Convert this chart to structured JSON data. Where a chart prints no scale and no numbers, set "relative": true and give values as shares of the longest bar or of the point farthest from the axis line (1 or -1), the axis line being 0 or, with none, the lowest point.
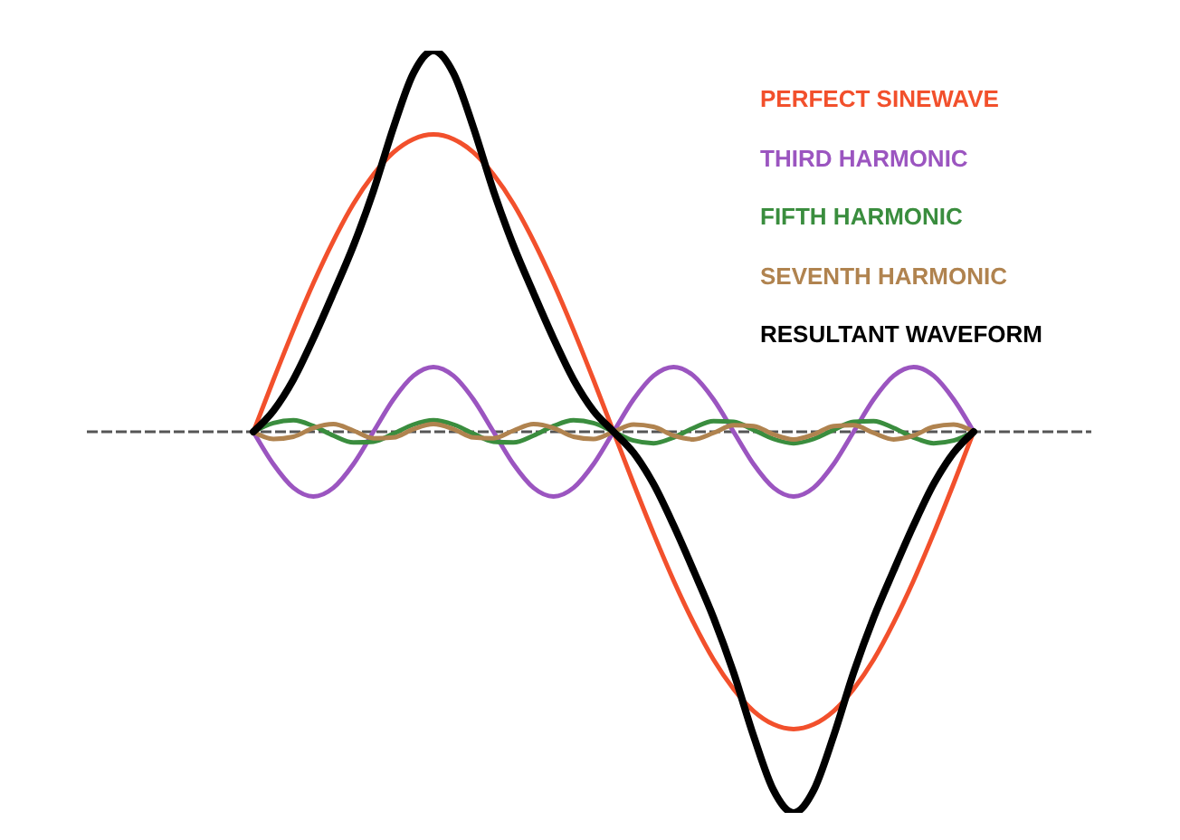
{
  "chart_data": {
    "type": "line",
    "relative": true,
    "legend": "top right",
    "tick_labels": false,
    "grid": false,
    "marker": "none",
    "ref_lines": [
      {
        "axis": "y",
        "value": 0,
        "color": "#555555",
        "line_style": "dashed"
      }
    ],
    "categories": [
      null,
      null,
      null,
      null,
      null,
      null,
      null,
      null,
      null,
      null,
      null,
      null,
      null,
      null,
      null,
      null,
      null,
      null,
      null,
      null,
      null,
      null,
      null,
      null,
      null,
      null,
      null,
      null,
      null,
      null,
      null,
      null,
      null,
      null,
      null,
      null,
      null
    ],
    "series": [
      {
        "name": "PERFECT SINEWAVE",
        "color": "#f2502c",
        "values": [
          0,
          0.136,
          0.267,
          0.39,
          0.501,
          0.598,
          0.675,
          0.733,
          0.768,
          0.78,
          0.768,
          0.733,
          0.675,
          0.598,
          0.501,
          0.39,
          0.267,
          0.136,
          0,
          -0.136,
          -0.267,
          -0.39,
          -0.501,
          -0.598,
          -0.675,
          -0.733,
          -0.768,
          -0.78,
          -0.768,
          -0.733,
          -0.675,
          -0.598,
          -0.501,
          -0.39,
          -0.267,
          -0.136,
          0
        ]
      },
      {
        "name": "THIRD HARMONIC",
        "color": "#9b55c0",
        "values": [
          0,
          -0.085,
          -0.147,
          -0.17,
          -0.147,
          -0.085,
          0,
          0.085,
          0.147,
          0.17,
          0.147,
          0.085,
          0,
          -0.085,
          -0.147,
          -0.17,
          -0.147,
          -0.085,
          0,
          0.085,
          0.147,
          0.17,
          0.147,
          0.085,
          0,
          -0.085,
          -0.147,
          -0.17,
          -0.147,
          -0.085,
          0,
          0.085,
          0.147,
          0.17,
          0.147,
          0.085,
          0
        ]
      },
      {
        "name": "FIFTH HARMONIC",
        "color": "#3a8d3e",
        "values": [
          0,
          0.023,
          0.03,
          0.015,
          -0.01,
          -0.028,
          -0.026,
          -0.005,
          0.019,
          0.03,
          0.019,
          -0.005,
          -0.026,
          -0.028,
          -0.01,
          0.015,
          0.03,
          0.023,
          0,
          -0.023,
          -0.03,
          -0.015,
          0.01,
          0.028,
          0.026,
          0.005,
          -0.019,
          -0.03,
          -0.019,
          0.005,
          0.026,
          0.028,
          0.01,
          -0.015,
          -0.03,
          -0.023,
          0
        ]
      },
      {
        "name": "SEVENTH HARMONIC",
        "color": "#b0834f",
        "values": [
          0,
          -0.019,
          -0.013,
          0.01,
          0.02,
          0.003,
          -0.017,
          -0.015,
          0.007,
          0.02,
          0.007,
          -0.015,
          -0.017,
          0.003,
          0.02,
          0.01,
          -0.013,
          -0.019,
          0,
          0.019,
          0.013,
          -0.01,
          -0.02,
          -0.003,
          0.017,
          0.015,
          -0.007,
          -0.02,
          -0.007,
          0.015,
          0.017,
          -0.003,
          -0.02,
          -0.01,
          0.013,
          0.019,
          0
        ]
      },
      {
        "name": "RESULTANT WAVEFORM",
        "color": "#000000",
        "values": [
          0,
          0.055,
          0.137,
          0.245,
          0.364,
          0.488,
          0.632,
          0.798,
          0.941,
          1,
          0.941,
          0.798,
          0.632,
          0.488,
          0.364,
          0.245,
          0.137,
          0.055,
          0,
          -0.055,
          -0.137,
          -0.245,
          -0.364,
          -0.488,
          -0.632,
          -0.798,
          -0.941,
          -1,
          -0.941,
          -0.798,
          -0.632,
          -0.488,
          -0.364,
          -0.245,
          -0.137,
          -0.055,
          0
        ]
      }
    ]
  }
}
